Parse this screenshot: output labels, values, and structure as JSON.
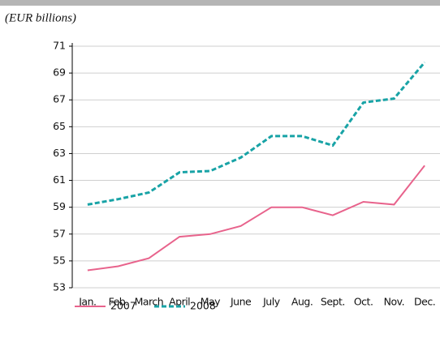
{
  "chart_data": {
    "type": "line",
    "subtitle": "(EUR billions)",
    "categories": [
      "Jan.",
      "Feb.",
      "March",
      "April",
      "May",
      "June",
      "July",
      "Aug.",
      "Sept.",
      "Oct.",
      "Nov.",
      "Dec."
    ],
    "series": [
      {
        "name": "2007",
        "color": "#e8638c",
        "dashed": false,
        "values": [
          54.3,
          54.6,
          55.2,
          56.8,
          57.0,
          57.6,
          59.0,
          59.0,
          58.4,
          59.4,
          59.2,
          62.1
        ]
      },
      {
        "name": "2008",
        "color": "#18a3a6",
        "dashed": true,
        "values": [
          59.2,
          59.6,
          60.1,
          61.6,
          61.7,
          62.7,
          64.3,
          64.3,
          63.6,
          66.8,
          67.1,
          69.8
        ]
      }
    ],
    "ylim": [
      53,
      71
    ],
    "yticks": [
      53,
      55,
      57,
      59,
      61,
      63,
      65,
      67,
      69,
      71
    ],
    "grid": true
  }
}
